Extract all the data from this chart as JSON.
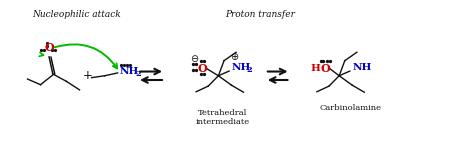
{
  "bg_color": "#ffffff",
  "label_nucleophilic": "Nucleophilic attack",
  "label_proton": "Proton transfer",
  "label_tetrahedral": "Tetrahedral\nintermediate",
  "label_carbinolamine": "Carbinolamine",
  "arrow_color_green": "#00bb00",
  "color_red": "#cc0000",
  "color_blue": "#0000cc",
  "color_black": "#111111",
  "figsize": [
    4.74,
    1.44
  ],
  "dpi": 100,
  "xlim": [
    0,
    10
  ],
  "ylim": [
    0,
    3
  ]
}
